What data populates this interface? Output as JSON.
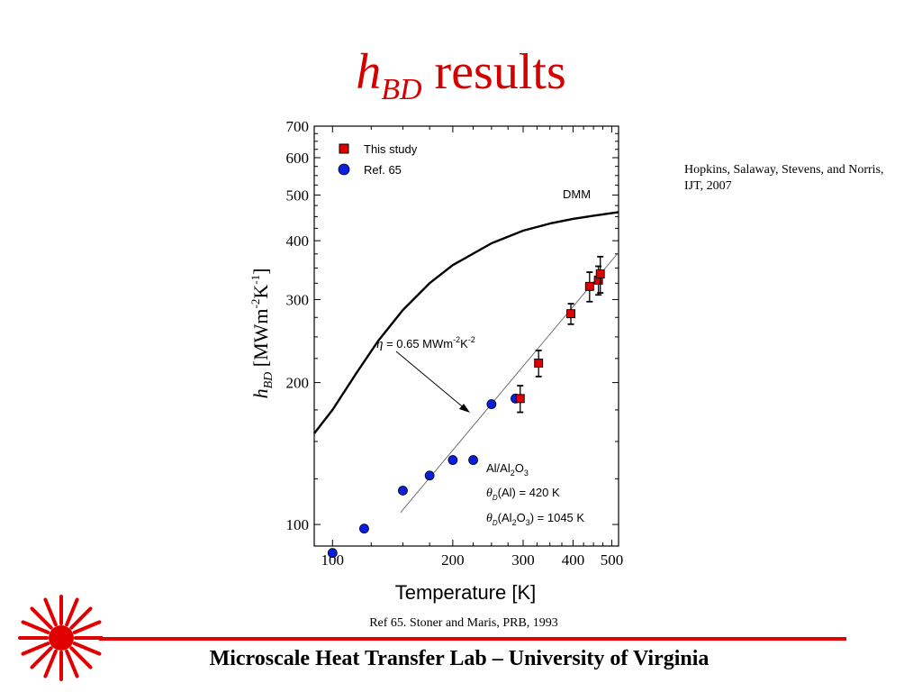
{
  "slide": {
    "title_symbol": "h",
    "title_subscript": "BD",
    "title_text": " results",
    "citation_top": "Hopkins, Salaway, Stevens, and Norris, IJT, 2007",
    "citation_bottom": "Ref 65. Stoner and Maris, PRB, 1993",
    "footer": "Microscale Heat Transfer Lab – University of Virginia",
    "accent_color": "#d40000"
  },
  "chart_data": {
    "type": "scatter",
    "title": "",
    "xlabel": "Temperature [K]",
    "ylabel_parts": {
      "symbol": "h",
      "subscript": "BD",
      "unit": " [MWm",
      "exp1": "-2",
      "unit2": "K",
      "exp2": "-1",
      "close": "]"
    },
    "x_scale": "log",
    "y_scale": "log",
    "xlim": [
      90,
      520
    ],
    "ylim": [
      90,
      700
    ],
    "x_ticks": [
      100,
      200,
      300,
      400,
      500
    ],
    "y_ticks": [
      100,
      200,
      300,
      400,
      500,
      600,
      700
    ],
    "legend": {
      "placement": "top-left",
      "entries": [
        {
          "name": "This study",
          "marker": "square",
          "color": "#e00000"
        },
        {
          "name": "Ref. 65",
          "marker": "circle",
          "color": "#0a1ee0"
        }
      ]
    },
    "series": [
      {
        "name": "This study",
        "marker": "square",
        "color": "#e00000",
        "points": [
          {
            "x": 295,
            "y": 185,
            "err": 12
          },
          {
            "x": 328,
            "y": 220,
            "err": 14
          },
          {
            "x": 395,
            "y": 280,
            "err": 14
          },
          {
            "x": 440,
            "y": 320,
            "err": 23
          },
          {
            "x": 463,
            "y": 330,
            "err": 23
          },
          {
            "x": 468,
            "y": 340,
            "err": 30
          }
        ]
      },
      {
        "name": "Ref. 65",
        "marker": "circle",
        "color": "#0a1ee0",
        "points": [
          {
            "x": 100,
            "y": 87
          },
          {
            "x": 120,
            "y": 98
          },
          {
            "x": 150,
            "y": 118
          },
          {
            "x": 175,
            "y": 127
          },
          {
            "x": 200,
            "y": 137
          },
          {
            "x": 225,
            "y": 137
          },
          {
            "x": 250,
            "y": 180
          },
          {
            "x": 287,
            "y": 185
          }
        ]
      }
    ],
    "curves": [
      {
        "name": "DMM",
        "label": "DMM",
        "points": [
          [
            90,
            156
          ],
          [
            100,
            175
          ],
          [
            115,
            210
          ],
          [
            130,
            245
          ],
          [
            150,
            285
          ],
          [
            175,
            325
          ],
          [
            200,
            355
          ],
          [
            250,
            395
          ],
          [
            300,
            420
          ],
          [
            350,
            435
          ],
          [
            400,
            445
          ],
          [
            450,
            452
          ],
          [
            520,
            460
          ]
        ]
      },
      {
        "name": "fit",
        "points": [
          [
            148,
            106
          ],
          [
            520,
            378
          ]
        ]
      }
    ],
    "annotations": {
      "eta": {
        "symbol": "η",
        "text": " = 0.65 MWm",
        "exp1": "-2",
        "unit2": "K",
        "exp2": "-2"
      },
      "material": {
        "base": "Al/Al",
        "sub": "2",
        "after": "O",
        "sub2": "3"
      },
      "theta_al": {
        "symbol": "θ",
        "sub": "D",
        "text": "(Al) = 420 K"
      },
      "theta_al2o3": {
        "symbol": "θ",
        "sub": "D",
        "text_a": "(Al",
        "sub2": "2",
        "text_b": "O",
        "sub3": "3",
        "text_c": ") = 1045 K"
      }
    }
  }
}
